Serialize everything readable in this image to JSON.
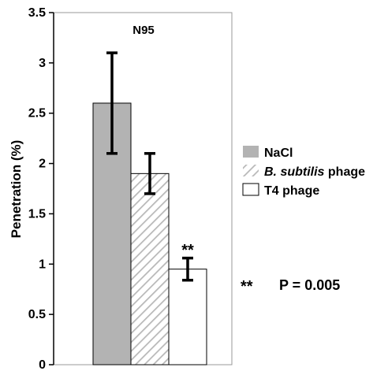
{
  "chart_data": {
    "type": "bar",
    "title": "N95",
    "ylabel": "Penetration (%)",
    "xlabel": "",
    "ylim": [
      0,
      3.5
    ],
    "yticks": [
      "0",
      "0.5",
      "1",
      "1.5",
      "2",
      "2.5",
      "3",
      "3.5"
    ],
    "categories": [
      "NaCl",
      "B. subtilis phage",
      "T4 phage"
    ],
    "series": [
      {
        "values": [
          2.6,
          1.9,
          0.95
        ],
        "error": [
          0.5,
          0.2,
          0.11
        ]
      }
    ],
    "legend": {
      "placement": "right",
      "entries": [
        {
          "label_prefix": "",
          "label_italic": "",
          "label_suffix": "NaCl",
          "fill": "#b3b3b3",
          "pattern": "solid"
        },
        {
          "label_prefix": "",
          "label_italic": "B. subtilis",
          "label_suffix": " phage",
          "fill": "#ffffff",
          "pattern": "hatch"
        },
        {
          "label_prefix": "",
          "label_italic": "",
          "label_suffix": "T4 phage",
          "fill": "#ffffff",
          "pattern": "open"
        }
      ]
    },
    "annotations": {
      "significance_marker": "**",
      "significance_bar_index": 2,
      "pvalue_marker": "**",
      "pvalue_text": "P = 0.005"
    },
    "grid": false,
    "colors": {
      "nacl": "#b3b3b3",
      "hatch": "#b8b8b8",
      "outline": "#000000"
    }
  }
}
